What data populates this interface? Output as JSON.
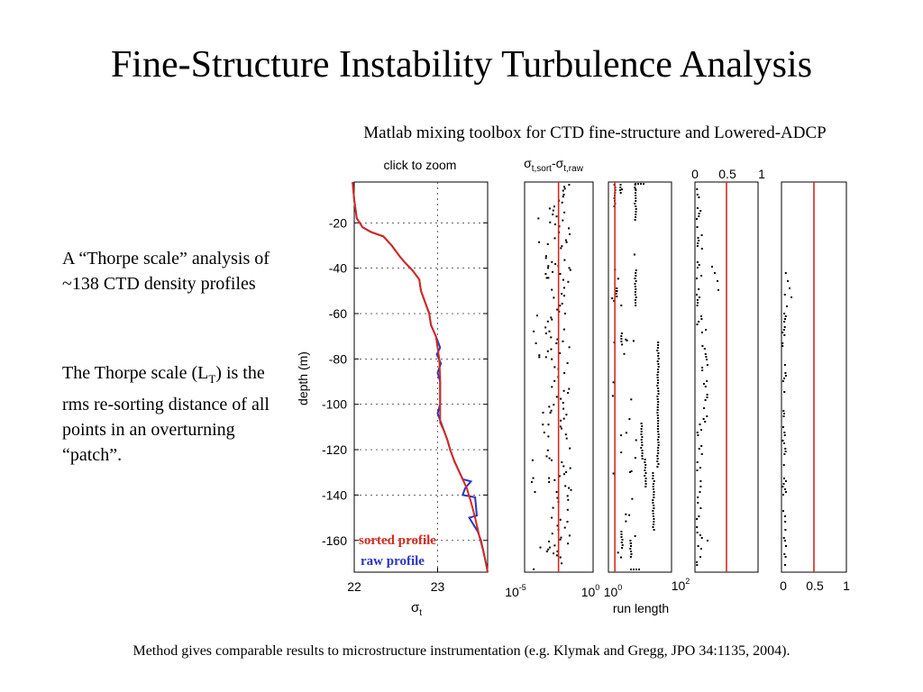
{
  "slide": {
    "title": "Fine-Structure Instability Turbulence Analysis",
    "subtitle": "Matlab mixing toolbox for CTD fine-structure and Lowered-ADCP",
    "paragraph1": "A “Thorpe scale” analysis of ~138 CTD density profiles",
    "paragraph2_pre": "The Thorpe scale (L",
    "paragraph2_sub": "T",
    "paragraph2_post": ") is the rms re-sorting distance of all points in an overturning “patch”.",
    "footer": "Method gives comparable results to microstructure instrumentation (e.g. Klymak and Gregg, JPO 34:1135, 2004)."
  },
  "colors": {
    "sorted": "#d42a1e",
    "raw": "#2a34c8",
    "points": "#000000"
  },
  "chart_data": [
    {
      "type": "line",
      "panel": "density",
      "title": "click to zoom",
      "xlabel_base": "σ",
      "xlabel_sub": "t",
      "ylabel": "depth (m)",
      "xlim": [
        22,
        23.6
      ],
      "ylim": [
        -174,
        -2
      ],
      "xticks": [
        22,
        23
      ],
      "yticks": [
        -20,
        -40,
        -60,
        -80,
        -100,
        -120,
        -140,
        -160
      ],
      "series": [
        {
          "name": "sorted profile",
          "color": "#d42a1e",
          "points": [
            [
              21.98,
              -2
            ],
            [
              22.0,
              -10
            ],
            [
              22.03,
              -18
            ],
            [
              22.1,
              -22
            ],
            [
              22.2,
              -24
            ],
            [
              22.35,
              -26
            ],
            [
              22.45,
              -30
            ],
            [
              22.55,
              -35
            ],
            [
              22.62,
              -38
            ],
            [
              22.7,
              -41
            ],
            [
              22.78,
              -45
            ],
            [
              22.8,
              -50
            ],
            [
              22.85,
              -55
            ],
            [
              22.9,
              -60
            ],
            [
              22.92,
              -65
            ],
            [
              22.98,
              -70
            ],
            [
              23.0,
              -75
            ],
            [
              23.02,
              -80
            ],
            [
              23.03,
              -88
            ],
            [
              23.03,
              -100
            ],
            [
              23.03,
              -108
            ],
            [
              23.08,
              -112
            ],
            [
              23.12,
              -116
            ],
            [
              23.15,
              -120
            ],
            [
              23.2,
              -125
            ],
            [
              23.25,
              -129
            ],
            [
              23.3,
              -133
            ],
            [
              23.35,
              -137
            ],
            [
              23.4,
              -143
            ],
            [
              23.45,
              -150
            ],
            [
              23.5,
              -158
            ],
            [
              23.55,
              -165
            ],
            [
              23.58,
              -170
            ],
            [
              23.6,
              -174
            ]
          ]
        },
        {
          "name": "raw profile",
          "color": "#2a34c8",
          "points": [
            [
              21.98,
              -2
            ],
            [
              22.0,
              -10
            ],
            [
              22.03,
              -18
            ],
            [
              22.1,
              -22
            ],
            [
              22.2,
              -24
            ],
            [
              22.35,
              -26
            ],
            [
              22.45,
              -30
            ],
            [
              22.55,
              -35
            ],
            [
              22.62,
              -38
            ],
            [
              22.7,
              -41
            ],
            [
              22.78,
              -45
            ],
            [
              22.8,
              -50
            ],
            [
              22.85,
              -55
            ],
            [
              22.9,
              -60
            ],
            [
              22.92,
              -65
            ],
            [
              22.98,
              -70
            ],
            [
              23.03,
              -75
            ],
            [
              22.99,
              -78
            ],
            [
              23.04,
              -82
            ],
            [
              23.0,
              -86
            ],
            [
              23.03,
              -90
            ],
            [
              23.03,
              -100
            ],
            [
              23.0,
              -104
            ],
            [
              23.04,
              -108
            ],
            [
              23.08,
              -112
            ],
            [
              23.12,
              -116
            ],
            [
              23.15,
              -120
            ],
            [
              23.2,
              -125
            ],
            [
              23.25,
              -129
            ],
            [
              23.3,
              -133
            ],
            [
              23.4,
              -134
            ],
            [
              23.33,
              -137
            ],
            [
              23.3,
              -140
            ],
            [
              23.45,
              -141
            ],
            [
              23.47,
              -149
            ],
            [
              23.38,
              -150
            ],
            [
              23.48,
              -156
            ],
            [
              23.52,
              -160
            ],
            [
              23.55,
              -165
            ],
            [
              23.58,
              -170
            ],
            [
              23.6,
              -174
            ]
          ]
        }
      ]
    },
    {
      "type": "scatter",
      "panel": "sigma-difference",
      "title_base": "σ",
      "title_sub1": "t,sort",
      "title_mid": "-σ",
      "title_sub2": "t,raw",
      "xscale": "log",
      "xlim": [
        1e-05,
        1
      ],
      "ylim": [
        -174,
        -2
      ],
      "xtick_labels": [
        {
          "base": "10",
          "exp": "-5"
        },
        {
          "base": "10",
          "exp": "0"
        }
      ],
      "reference_line": 0.003
    },
    {
      "type": "scatter",
      "panel": "run-length",
      "xlabel": "run length",
      "xscale": "log",
      "xlim": [
        1,
        100
      ],
      "ylim": [
        -174,
        -2
      ],
      "xtick_labels": [
        {
          "base": "10",
          "exp": "0"
        },
        {
          "base": "10",
          "exp": "2"
        }
      ],
      "reference_line": 1.6
    },
    {
      "type": "scatter",
      "panel": "fraction-a",
      "xlim": [
        0,
        1
      ],
      "ylim": [
        -174,
        -2
      ],
      "xtick_labels_top": [
        "0",
        "0.5",
        "1"
      ],
      "reference_line": 0.5
    },
    {
      "type": "scatter",
      "panel": "fraction-b",
      "xlim": [
        0,
        1
      ],
      "ylim": [
        -174,
        -2
      ],
      "xtick_labels_bottom": [
        "0",
        "0.5",
        "1"
      ],
      "reference_line": 0.5
    }
  ]
}
